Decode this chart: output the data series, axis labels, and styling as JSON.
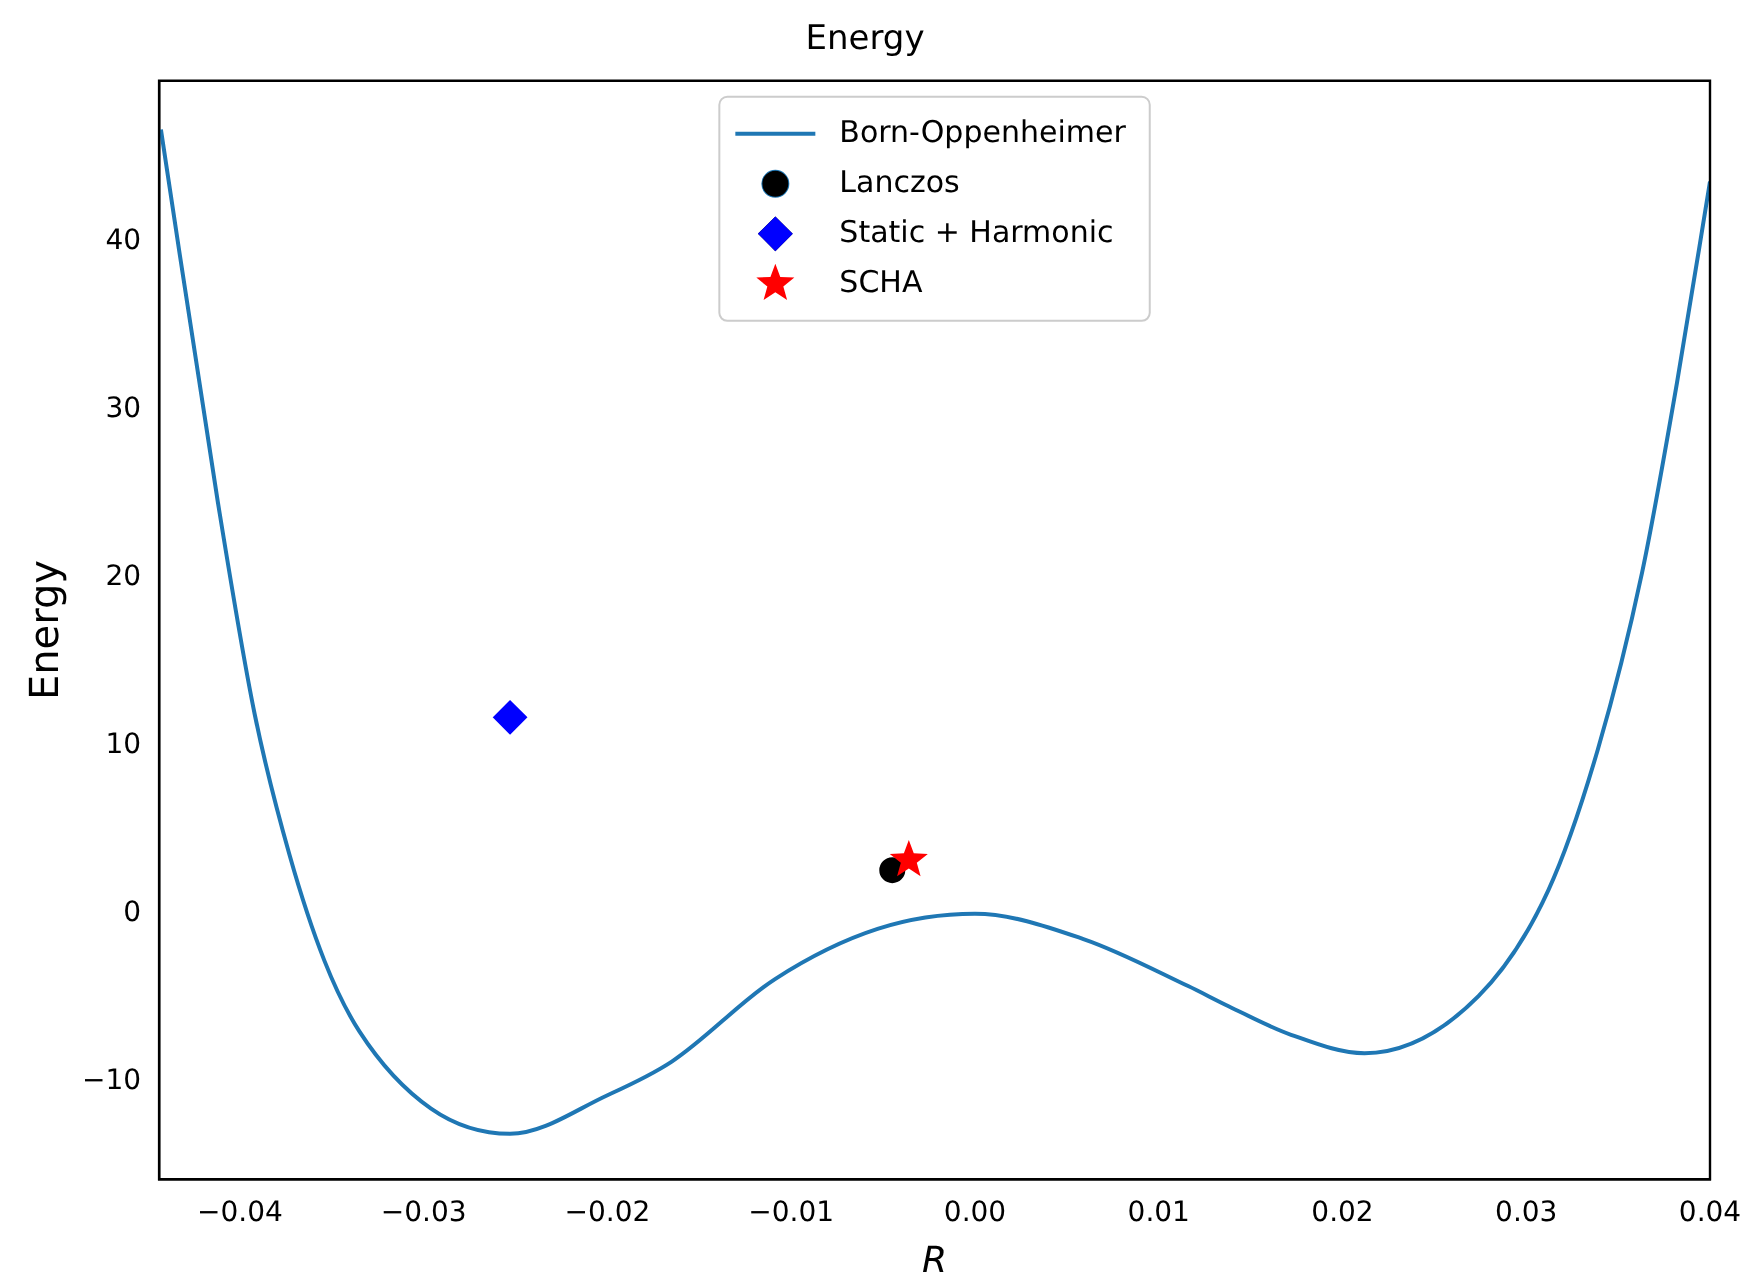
{
  "chart_data": {
    "type": "line",
    "title": "Energy",
    "xlabel": "R",
    "ylabel": "Energy",
    "xlim": [
      -0.0444,
      0.04
    ],
    "ylim": [
      -15.8,
      49.6
    ],
    "xticks": [
      {
        "value": -0.04,
        "label": "−0.04"
      },
      {
        "value": -0.03,
        "label": "−0.03"
      },
      {
        "value": -0.02,
        "label": "−0.02"
      },
      {
        "value": -0.01,
        "label": "−0.01"
      },
      {
        "value": 0,
        "label": "0.00"
      },
      {
        "value": 0.01,
        "label": "0.01"
      },
      {
        "value": 0.02,
        "label": "0.02"
      },
      {
        "value": 0.03,
        "label": "0.03"
      },
      {
        "value": 0.04,
        "label": "0.04"
      }
    ],
    "yticks": [
      {
        "value": -10,
        "label": "−10"
      },
      0,
      10,
      20,
      30,
      40
    ],
    "grid": false,
    "legend": "top",
    "series": [
      {
        "name": "Born-Oppenheimer",
        "color": "#1f77b4",
        "marker": "none",
        "x": [
          -0.0443,
          -0.0412,
          -0.0392,
          -0.0373,
          -0.0354,
          -0.0335,
          -0.0296,
          -0.0253,
          -0.02,
          -0.0165,
          -0.0109,
          -0.0053,
          0,
          0.0059,
          0.0116,
          0.0138,
          0.0172,
          0.0212,
          0.0274,
          0.0312,
          0.0339,
          0.0363,
          0.0382,
          0.04
        ],
        "values": [
          46.7,
          24.5,
          11.9,
          3.5,
          -2.8,
          -7.0,
          -11.6,
          -13.1,
          -10.8,
          -8.8,
          -3.9,
          -0.9,
          0,
          -1.5,
          -4.3,
          -5.5,
          -7.2,
          -8.3,
          -4.9,
          1.4,
          9.8,
          20.3,
          31.6,
          43.6
        ]
      },
      {
        "name": "Lanczos",
        "type": "scatter",
        "color": "#000000",
        "marker": "circle",
        "x": [
          -0.0045
        ],
        "values": [
          2.6
        ]
      },
      {
        "name": "Static + Harmonic",
        "type": "scatter",
        "color": "#0000ff",
        "marker": "diamond",
        "x": [
          -0.0253
        ],
        "values": [
          11.7
        ]
      },
      {
        "name": "SCHA",
        "type": "scatter",
        "color": "#ff0000",
        "marker": "star",
        "x": [
          -0.0036
        ],
        "values": [
          3.2
        ]
      }
    ]
  }
}
